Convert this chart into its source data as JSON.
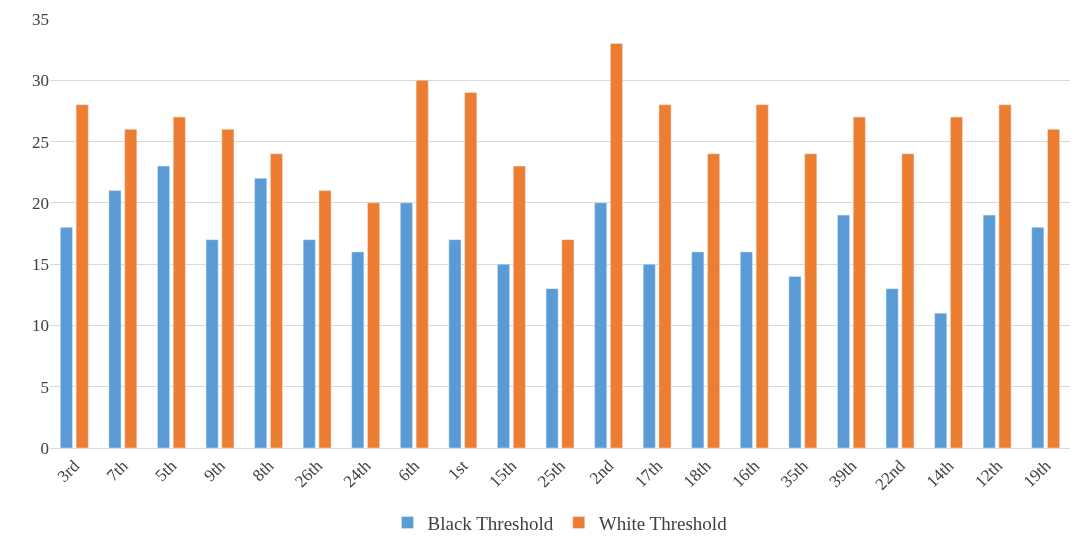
{
  "chart_data": {
    "type": "bar",
    "categories": [
      "3rd",
      "7th",
      "5th",
      "9th",
      "8th",
      "26th",
      "24th",
      "6th",
      "1st",
      "15th",
      "25th",
      "2nd",
      "17th",
      "18th",
      "16th",
      "35th",
      "39th",
      "22nd",
      "14th",
      "12th",
      "19th"
    ],
    "series": [
      {
        "name": "Black Threshold",
        "color": "#5b9bd5",
        "values": [
          18,
          21,
          23,
          17,
          22,
          17,
          16,
          20,
          17,
          15,
          13,
          20,
          15,
          16,
          16,
          14,
          19,
          13,
          11,
          19,
          18
        ]
      },
      {
        "name": "White Threshold",
        "color": "#ed7d31",
        "values": [
          28,
          26,
          27,
          26,
          24,
          21,
          20,
          30,
          29,
          23,
          17,
          33,
          28,
          24,
          28,
          24,
          27,
          24,
          27,
          28,
          26
        ]
      }
    ],
    "ylim": [
      0,
      35
    ],
    "yticks": [
      0,
      5,
      10,
      15,
      20,
      25,
      30,
      35
    ],
    "grid": "y",
    "legend": "bottom"
  }
}
